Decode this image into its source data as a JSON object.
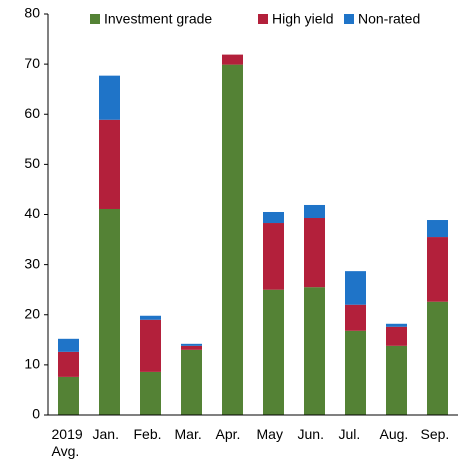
{
  "chart_data": {
    "type": "stacked_bar",
    "categories": [
      "2019 Avg.",
      "Jan.",
      "Feb.",
      "Mar.",
      "Apr.",
      "May",
      "Jun.",
      "Jul.",
      "Aug.",
      "Sep."
    ],
    "series": [
      {
        "name": "Investment grade",
        "color": "#548235",
        "values": [
          7.6,
          41.1,
          8.6,
          13.0,
          69.9,
          25.0,
          25.5,
          16.8,
          13.8,
          22.6
        ]
      },
      {
        "name": "High yield",
        "color": "#b3203b",
        "values": [
          5.0,
          17.8,
          10.4,
          0.8,
          2.0,
          13.3,
          13.8,
          5.2,
          3.8,
          12.9
        ]
      },
      {
        "name": "Non-rated",
        "color": "#1f74c8",
        "values": [
          2.6,
          8.8,
          0.8,
          0.4,
          0,
          2.2,
          2.6,
          6.7,
          0.6,
          3.4
        ]
      }
    ],
    "ylim": [
      0,
      80
    ],
    "yticks": [
      0,
      10,
      20,
      30,
      40,
      50,
      60,
      70,
      80
    ],
    "grid": false
  }
}
